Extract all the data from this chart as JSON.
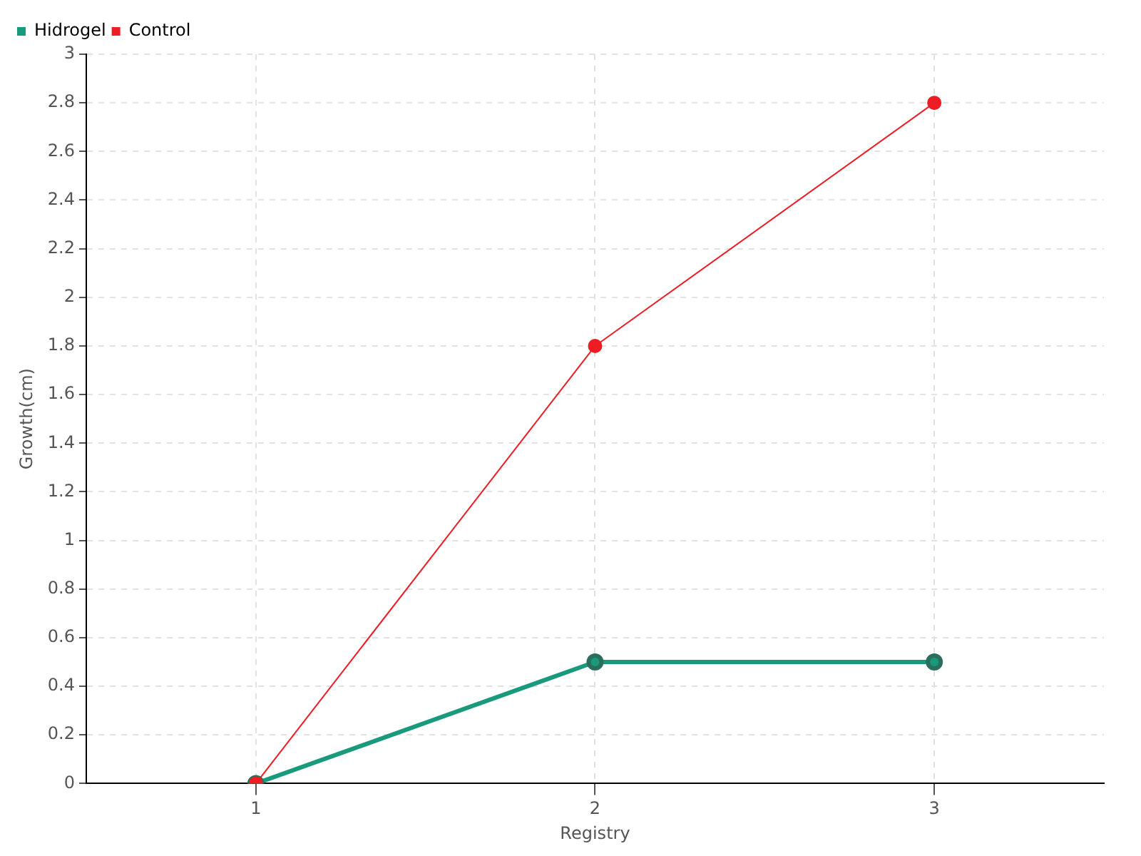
{
  "chart_data": {
    "type": "line",
    "xlabel": "Registry",
    "ylabel": "Growth(cm)",
    "x": [
      1,
      2,
      3
    ],
    "series": [
      {
        "name": "Hidrogel",
        "color": "#1a9a7c",
        "values": [
          0,
          0.5,
          0.5
        ]
      },
      {
        "name": "Control",
        "color": "#ee1c25",
        "values": [
          0,
          1.8,
          2.8
        ]
      }
    ],
    "xlim": [
      0.5,
      3.5
    ],
    "xticks": [
      1,
      2,
      3
    ],
    "ylim": [
      0,
      3
    ],
    "yticks": [
      0,
      0.2,
      0.4,
      0.6,
      0.8,
      1,
      1.2,
      1.4,
      1.6,
      1.8,
      2,
      2.2,
      2.4,
      2.6,
      2.8,
      3
    ],
    "grid": true,
    "legend": "top left",
    "marker": "circle",
    "line_style": "solid"
  }
}
